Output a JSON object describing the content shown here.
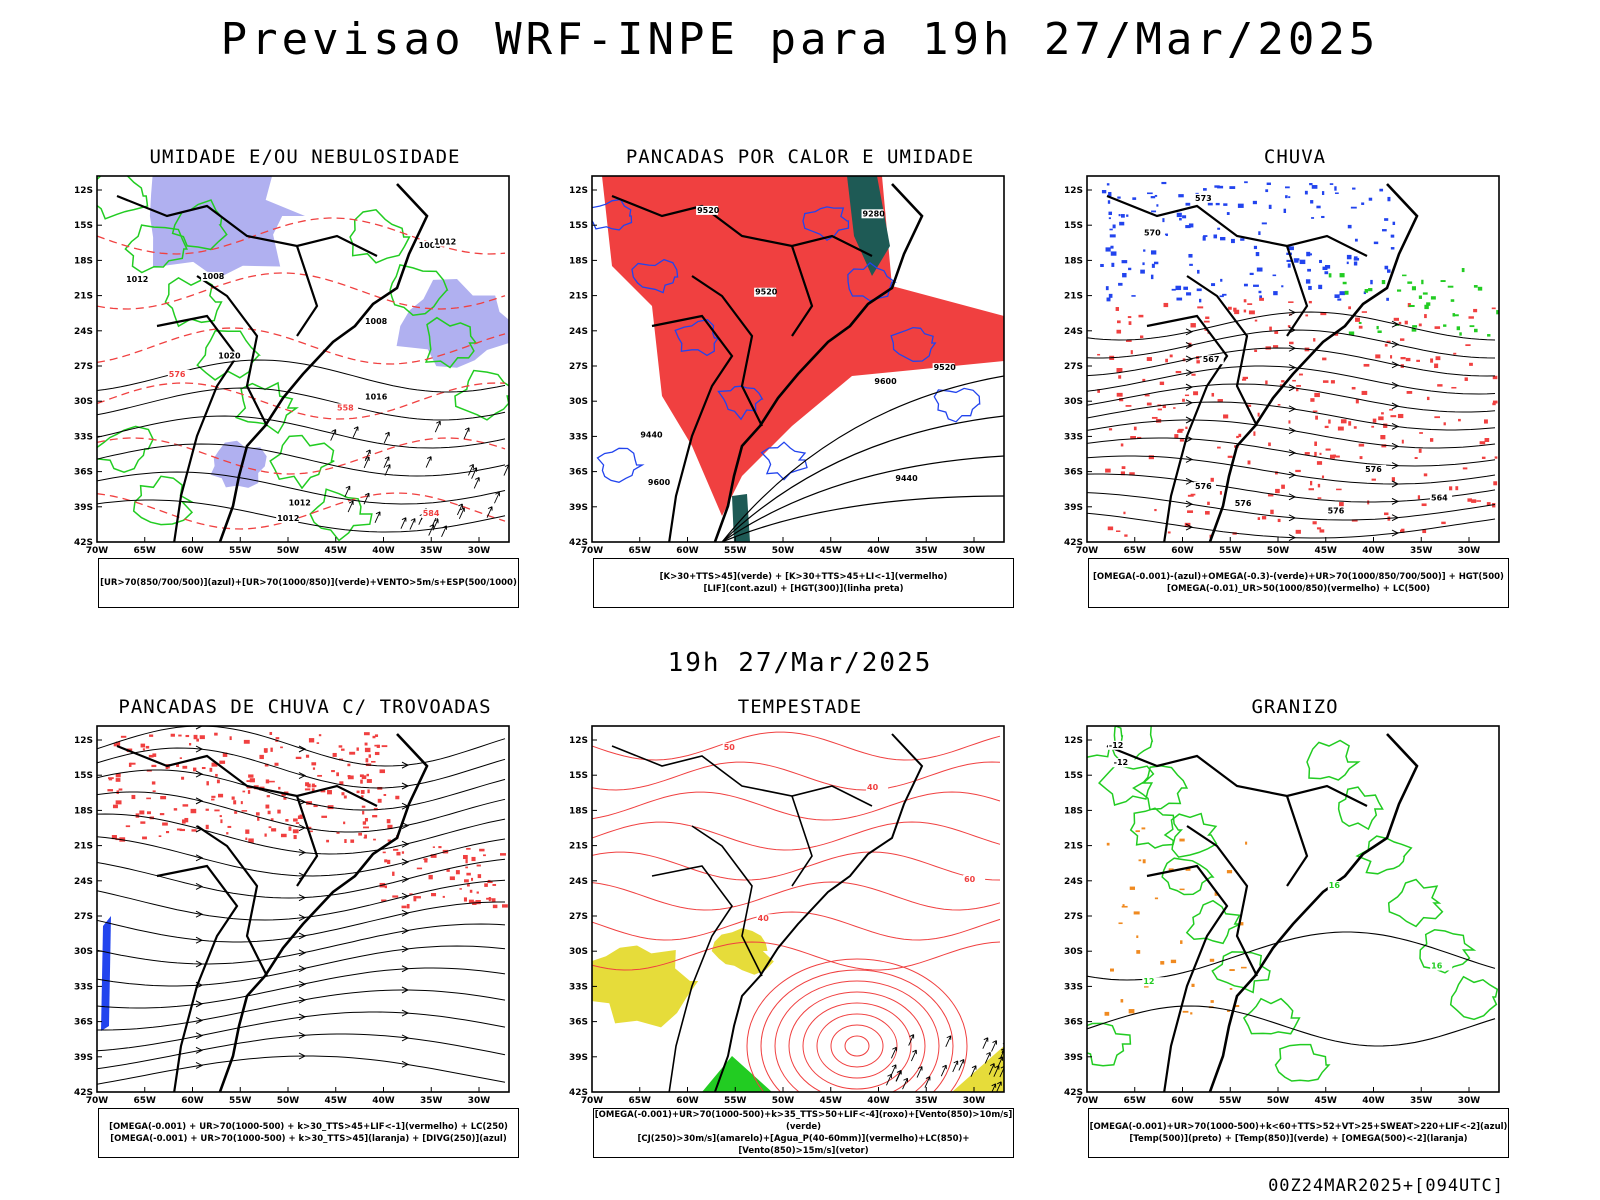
{
  "header": {
    "title": "Previsao WRF-INPE  para 19h 27/Mar/2025"
  },
  "mid_date": "19h 27/Mar/2025",
  "footer": "00Z24MAR2025+[094UTC]",
  "axes": {
    "lat_labels": [
      "12S",
      "15S",
      "18S",
      "21S",
      "24S",
      "27S",
      "30S",
      "33S",
      "36S",
      "39S",
      "42S"
    ],
    "lon_labels": [
      "70W",
      "65W",
      "60W",
      "55W",
      "50W",
      "45W",
      "40W",
      "35W",
      "30W"
    ]
  },
  "panels": [
    {
      "title": "UMIDADE E/OU NEBULOSIDADE",
      "legend": [
        "[UR>70(850/700/500)](azul)+[UR>70(1000/850)](verde)+VENTO>5m/s+ESP(500/1000)"
      ],
      "contour_labels": [
        "1012",
        "1008",
        "1008",
        "1012",
        "1008",
        "1012",
        "1016",
        "1020",
        "1012",
        "584",
        "576",
        "558"
      ]
    },
    {
      "title": "PANCADAS POR CALOR E UMIDADE",
      "legend": [
        "[K>30+TTS>45](verde) + [K>30+TTS>45+LI<-1](vermelho)",
        "[LIF](cont.azul) + [HGT(300)](linha preta)"
      ],
      "contour_labels": [
        "9600",
        "9520",
        "9600",
        "9520",
        "9520",
        "9440",
        "9440",
        "9280"
      ]
    },
    {
      "title": "CHUVA",
      "legend": [
        "[OMEGA(-0.001)-(azul)+OMEGA(-0.3)-(verde)+UR>70(1000/850/700/500)] + HGT(500)",
        "[OMEGA(-0.01)_UR>50(1000/850)(vermelho) + LC(500)"
      ],
      "contour_labels": [
        "576",
        "576",
        "576",
        "576",
        "573",
        "570",
        "567",
        "564"
      ]
    },
    {
      "title": "PANCADAS DE CHUVA C/ TROVOADAS",
      "legend": [
        "[OMEGA(-0.001) + UR>70(1000-500) + k>30_TTS>45+LIF<-1](vermelho) + LC(250)",
        "[OMEGA(-0.001) + UR>70(1000-500) + k>30_TTS>45](laranja) + [DIVG(250)](azul)"
      ],
      "contour_labels": []
    },
    {
      "title": "TEMPESTADE",
      "legend": [
        "[OMEGA(-0.001)+UR>70(1000-500)+k>35_TTS>50+LIF<-4](roxo)+[Vento(850)>10m/s](verde)",
        "[CJ(250)>30m/s](amarelo)+[Agua_P(40-60mm)](vermelho)+LC(850)+[Vento(850)>15m/s](vetor)"
      ],
      "contour_labels": [
        "50",
        "40",
        "60",
        "40"
      ]
    },
    {
      "title": "GRANIZO",
      "legend": [
        "[OMEGA(-0.001)+UR>70(1000-500)+k<60+TTS>52+VT>25+SWEAT>220+LIF<-2](azul)",
        "[Temp(500)](preto) + [Temp(850)](verde) + [OMEGA(500)<-2](laranja)"
      ],
      "contour_labels": [
        "-12",
        "-12",
        "12",
        "16",
        "16"
      ]
    }
  ],
  "colors": {
    "red": "#f04040",
    "green": "#22cc22",
    "blue": "#2244ee",
    "lavender": "#b0b0f0",
    "darkteal": "#1e5a55",
    "yellow": "#e6dc3a",
    "orange": "#f08a20"
  }
}
